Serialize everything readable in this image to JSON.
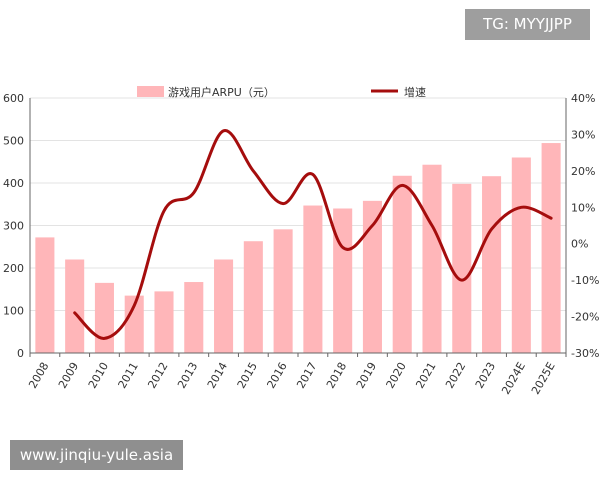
{
  "watermarks": {
    "top": "TG: MYYJJPP",
    "bottom": "www.jinqiu-yule.asia"
  },
  "chart_data": {
    "type": "bar",
    "categories": [
      "2008",
      "2009",
      "2010",
      "2011",
      "2012",
      "2013",
      "2014",
      "2015",
      "2016",
      "2017",
      "2018",
      "2019",
      "2020",
      "2021",
      "2022",
      "2023",
      "2024E",
      "2025E"
    ],
    "series": [
      {
        "name": "游戏用户ARPU（元）",
        "type": "bar",
        "axis": "left",
        "color": "#ffb6b9",
        "values": [
          272,
          220,
          165,
          135,
          145,
          167,
          220,
          263,
          291,
          347,
          340,
          358,
          417,
          443,
          398,
          416,
          460,
          494
        ]
      },
      {
        "name": "增速",
        "type": "line",
        "axis": "right",
        "color": "#a50d0d",
        "values": [
          null,
          -19,
          -26,
          -17,
          9,
          14,
          31,
          20,
          11,
          19,
          -1,
          5,
          16,
          5,
          -10,
          4,
          10,
          7
        ]
      }
    ],
    "y_left": {
      "min": 0,
      "max": 600,
      "ticks": [
        0,
        100,
        200,
        300,
        400,
        500,
        600
      ]
    },
    "y_right": {
      "min": -30,
      "max": 40,
      "ticks": [
        "-30%",
        "-20%",
        "-10%",
        "0%",
        "10%",
        "20%",
        "30%",
        "40%"
      ]
    },
    "grid": true,
    "legend_position": "top"
  }
}
